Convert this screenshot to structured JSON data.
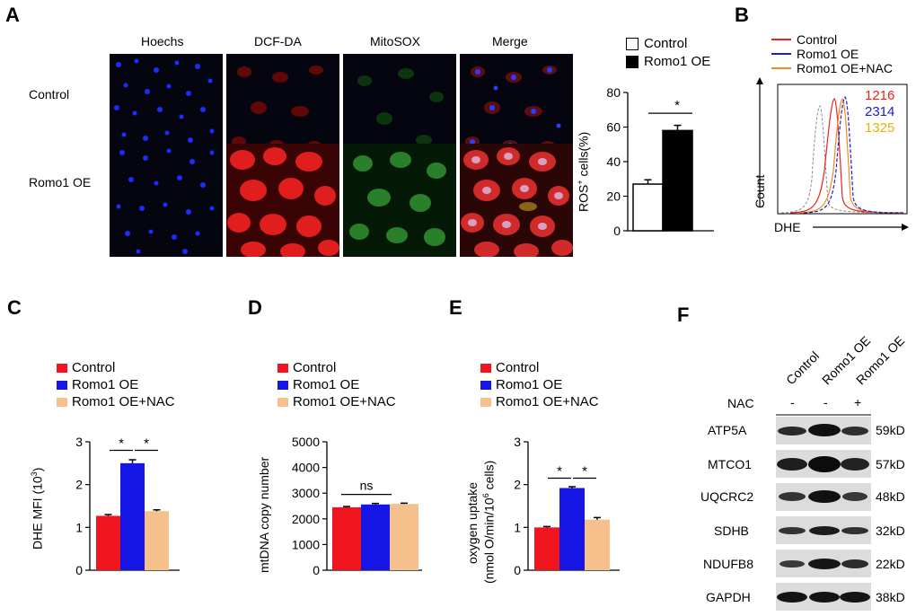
{
  "panels": {
    "A": {
      "label": "A",
      "columns": [
        "Hoechs",
        "DCF-DA",
        "MitoSOX",
        "Merge"
      ],
      "rows": [
        "Control",
        "Romo1 OE"
      ]
    },
    "A_chart": {
      "legend": [
        "Control",
        "Romo1 OE"
      ],
      "ylabel": "ROS",
      "ylabel_sup": "+",
      "ylabel_rest": " cells(%)"
    },
    "B": {
      "label": "B",
      "legend": [
        "Control",
        "Romo1 OE",
        "Romo1 OE+NAC"
      ],
      "values": [
        "1216",
        "2314",
        "1325"
      ],
      "xlabel": "DHE",
      "ylabel": "Count"
    },
    "C": {
      "label": "C",
      "ylabel": "DHE MFI (10",
      "ylabel_sup": "3",
      "ylabel_end": ")"
    },
    "D": {
      "label": "D",
      "ylabel": "mtDNA copy number"
    },
    "E": {
      "label": "E",
      "ylabel1": "oxygen uptake",
      "ylabel2_a": "(nmol O/min/10",
      "ylabel2_sup": "6",
      "ylabel2_b": " cells)"
    },
    "F": {
      "label": "F",
      "lanes": [
        "Control",
        "Romo1 OE",
        "Romo1 OE"
      ],
      "nac_label": "NAC",
      "nac_signs": [
        "-",
        "-",
        "+"
      ],
      "proteins": [
        "ATP5A",
        "MTCO1",
        "UQCRC2",
        "SDHB",
        "NDUFB8",
        "GAPDH"
      ],
      "sizes": [
        "59kD",
        "57kD",
        "48kD",
        "32kD",
        "22kD",
        "38kD"
      ]
    }
  },
  "common_legend": [
    "Control",
    "Romo1 OE",
    "Romo1 OE+NAC"
  ],
  "colors": {
    "control": "#f0141e",
    "romo1": "#1515e6",
    "nac": "#f6c08c",
    "flow_control": "#e8231e",
    "flow_romo1": "#2020c8",
    "flow_nac": "#f28a1e",
    "flow_num_nac": "#e6b400"
  },
  "chart_data": [
    {
      "id": "A_chart",
      "type": "bar",
      "categories": [
        "Control",
        "Romo1 OE"
      ],
      "values": [
        27,
        58
      ],
      "errors": [
        2.5,
        3
      ],
      "ylabel": "ROS+ cells(%)",
      "ylim": [
        0,
        80
      ],
      "yticks": [
        0,
        20,
        40,
        60,
        80
      ],
      "significance": [
        "*"
      ]
    },
    {
      "id": "C",
      "type": "bar",
      "categories": [
        "Control",
        "Romo1 OE",
        "Romo1 OE+NAC"
      ],
      "values": [
        1.27,
        2.5,
        1.38
      ],
      "errors": [
        0.03,
        0.08,
        0.03
      ],
      "ylabel": "DHE MFI (10^3)",
      "ylim": [
        0,
        3
      ],
      "yticks": [
        0,
        1,
        2,
        3
      ],
      "significance": [
        "*",
        "*"
      ]
    },
    {
      "id": "D",
      "type": "bar",
      "categories": [
        "Control",
        "Romo1 OE",
        "Romo1 OE+NAC"
      ],
      "values": [
        2450,
        2560,
        2580
      ],
      "errors": [
        30,
        40,
        30
      ],
      "ylabel": "mtDNA copy number",
      "ylim": [
        0,
        5000
      ],
      "yticks": [
        0,
        1000,
        2000,
        3000,
        4000,
        5000
      ],
      "significance": [
        "ns"
      ]
    },
    {
      "id": "E",
      "type": "bar",
      "categories": [
        "Control",
        "Romo1 OE",
        "Romo1 OE+NAC"
      ],
      "values": [
        1.0,
        1.92,
        1.18
      ],
      "errors": [
        0.02,
        0.03,
        0.05
      ],
      "ylabel": "oxygen uptake (nmol O/min/10^6 cells)",
      "ylim": [
        0,
        3
      ],
      "yticks": [
        0,
        1,
        2,
        3
      ],
      "significance": [
        "*",
        "*"
      ]
    }
  ]
}
